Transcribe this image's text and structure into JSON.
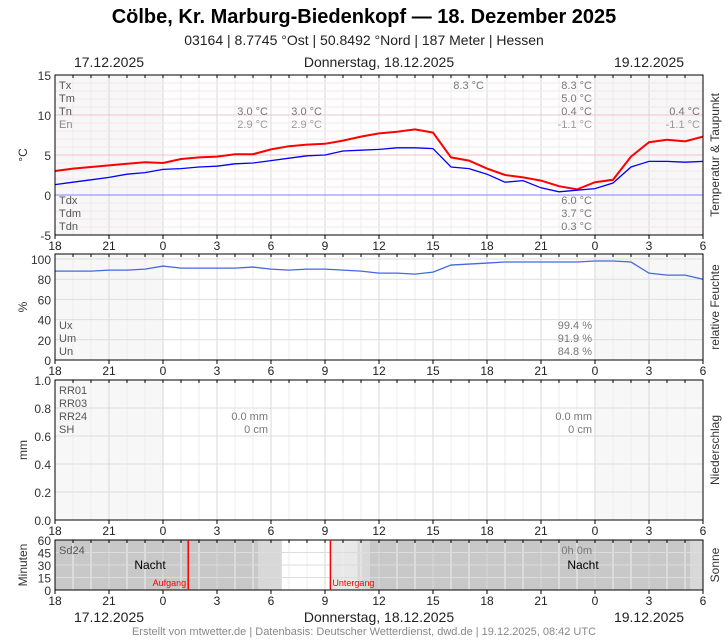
{
  "header": {
    "title": "Cölbe, Kr. Marburg-Biedenkopf  —  18. Dezember 2025",
    "subtitle": "03164  |  8.7745 °Ost  |  50.8492 °Nord  |  187 Meter  |  Hessen"
  },
  "dates": {
    "left": "17.12.2025",
    "center": "Donnerstag, 18.12.2025",
    "right": "19.12.2025"
  },
  "footer": "Erstellt von mtwetter.de | Datenbasis: Deutscher Wetterdienst, dwd.de | 19.12.2025, 08:42 UTC",
  "colors": {
    "temperature": "#ff0000",
    "dewpoint": "#0000ff",
    "humidity": "#4169e1",
    "sun_event": "#ff0000",
    "night": "#c8c8c8"
  },
  "chart_data": [
    {
      "type": "line",
      "ylabel": "°C",
      "side_label": "Temperatur & Taupunkt",
      "ylim": [
        -5,
        15
      ],
      "yticks": [
        "-5",
        "0",
        "5",
        "10",
        "15"
      ],
      "xticks": [
        "18",
        "21",
        "0",
        "3",
        "6",
        "9",
        "12",
        "15",
        "18",
        "21",
        "0",
        "3",
        "6"
      ],
      "x_hours": [
        18,
        19,
        20,
        21,
        22,
        23,
        0,
        1,
        2,
        3,
        4,
        5,
        6,
        7,
        8,
        9,
        10,
        11,
        12,
        13,
        14,
        15,
        16,
        17,
        18,
        19,
        20,
        21,
        22,
        23,
        0,
        1,
        2,
        3,
        4,
        5,
        6
      ],
      "series": [
        {
          "key": "temperature",
          "values": [
            3.0,
            3.3,
            3.5,
            3.7,
            3.9,
            4.1,
            4.0,
            4.5,
            4.7,
            4.8,
            5.1,
            5.1,
            5.7,
            6.1,
            6.3,
            6.4,
            6.8,
            7.3,
            7.7,
            7.9,
            8.2,
            7.8,
            4.7,
            4.3,
            3.3,
            2.5,
            2.2,
            1.8,
            1.1,
            0.7,
            1.6,
            1.9,
            4.8,
            6.6,
            6.9,
            6.7,
            7.3
          ]
        },
        {
          "key": "dewpoint",
          "values": [
            1.3,
            1.6,
            1.9,
            2.2,
            2.6,
            2.8,
            3.2,
            3.3,
            3.5,
            3.6,
            3.9,
            4.0,
            4.3,
            4.6,
            4.9,
            5.0,
            5.5,
            5.6,
            5.7,
            5.9,
            5.9,
            5.8,
            3.5,
            3.3,
            2.6,
            1.6,
            1.8,
            0.9,
            0.4,
            0.6,
            0.8,
            1.5,
            3.5,
            4.2,
            4.2,
            4.1,
            4.2
          ]
        }
      ],
      "stats_labels": [
        "Tx",
        "Tm",
        "Tn",
        "En"
      ],
      "dew_labels": [
        "Tdx",
        "Tdm",
        "Tdn"
      ],
      "stats_day1": {
        "Tn": "3.0 °C",
        "En": "2.9 °C"
      },
      "stats_day1b": {
        "Tn": "3.0 °C",
        "En": "2.9 °C"
      },
      "stats_day2_tx_mark": "8.3 °C",
      "stats_day2": {
        "Tx": "8.3 °C",
        "Tm": "5.0 °C",
        "Tn": "0.4 °C",
        "En": "-1.1 °C"
      },
      "stats_day3": {
        "Tn": "0.4 °C",
        "En": "-1.1 °C"
      },
      "dew_day2": {
        "Tdx": "6.0 °C",
        "Tdm": "3.7 °C",
        "Tdn": "0.3 °C"
      }
    },
    {
      "type": "line",
      "ylabel": "%",
      "side_label": "relative Feuchte",
      "ylim": [
        0,
        100
      ],
      "yticks": [
        "0",
        "20",
        "40",
        "60",
        "80",
        "100"
      ],
      "series": [
        {
          "key": "humidity",
          "values": [
            88,
            88,
            88,
            89,
            89,
            90,
            93,
            91,
            91,
            91,
            91,
            92,
            90,
            89,
            90,
            90,
            89,
            88,
            86,
            86,
            85,
            87,
            94,
            95,
            96,
            97,
            97,
            97,
            97,
            97,
            98,
            98,
            97,
            86,
            84,
            84,
            80
          ]
        }
      ],
      "stats_labels": [
        "Ux",
        "Um",
        "Un"
      ],
      "stats_day2": {
        "Ux": "99.4 %",
        "Um": "91.9 %",
        "Un": "84.8 %"
      }
    },
    {
      "type": "bar",
      "ylabel": "mm",
      "side_label": "Niederschlag",
      "ylim": [
        0,
        1.0
      ],
      "yticks": [
        "0.0",
        "0.2",
        "0.4",
        "0.6",
        "0.8",
        "1.0"
      ],
      "series": [],
      "stats_labels": [
        "RR01",
        "RR03",
        "RR24",
        "SH"
      ],
      "stats_day1": {
        "RR24": "0.0 mm",
        "SH": "0 cm"
      },
      "stats_day2": {
        "RR24": "0.0 mm",
        "SH": "0 cm"
      }
    },
    {
      "type": "bar",
      "ylabel": "Minuten",
      "side_label": "Sonne",
      "ylim": [
        0,
        60
      ],
      "yticks": [
        "0",
        "15",
        "30",
        "45",
        "60"
      ],
      "stats_labels": [
        "Sd24"
      ],
      "stats_day2": {
        "Sd24": "0h 0m"
      },
      "night_label": "Nacht",
      "sunrise_label": "Aufgang",
      "sunset_label": "Untergang",
      "sunrise_hour": 7.4,
      "sunset_hour": 15.3
    }
  ]
}
